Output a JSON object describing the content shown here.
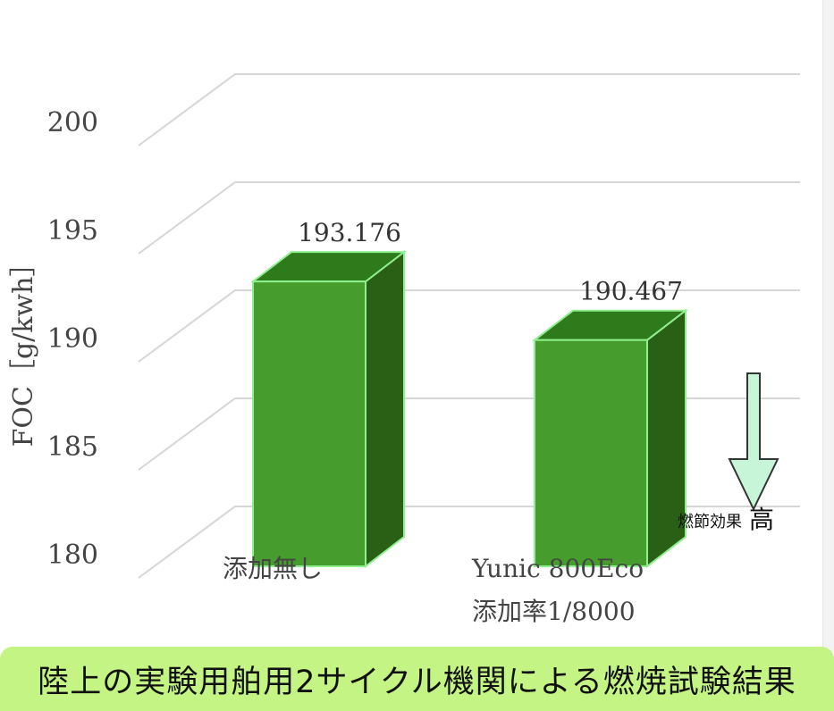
{
  "chart_data": {
    "type": "bar",
    "ylabel": "FOC［g/kwh］",
    "yticks": [
      180,
      185,
      190,
      195,
      200
    ],
    "ylim": [
      180,
      200
    ],
    "grid": true,
    "categories": [
      {
        "line1": "添加無し",
        "line2": ""
      },
      {
        "line1": "Yunic 800Eco",
        "line2": "添加率1/8000"
      }
    ],
    "values": [
      193.176,
      190.467
    ],
    "data_labels": [
      "193.176",
      "190.467"
    ],
    "bar_colors": {
      "front": "#469d2d",
      "top": "#2f7a1b",
      "side": "#2a5f16",
      "edge": "#8ff08f"
    },
    "annotation": {
      "small": "燃節効果",
      "large": "高",
      "arrow_color": "#c7f5d7"
    }
  },
  "caption": "陸上の実験用舶用2サイクル機関による燃焼試験結果"
}
